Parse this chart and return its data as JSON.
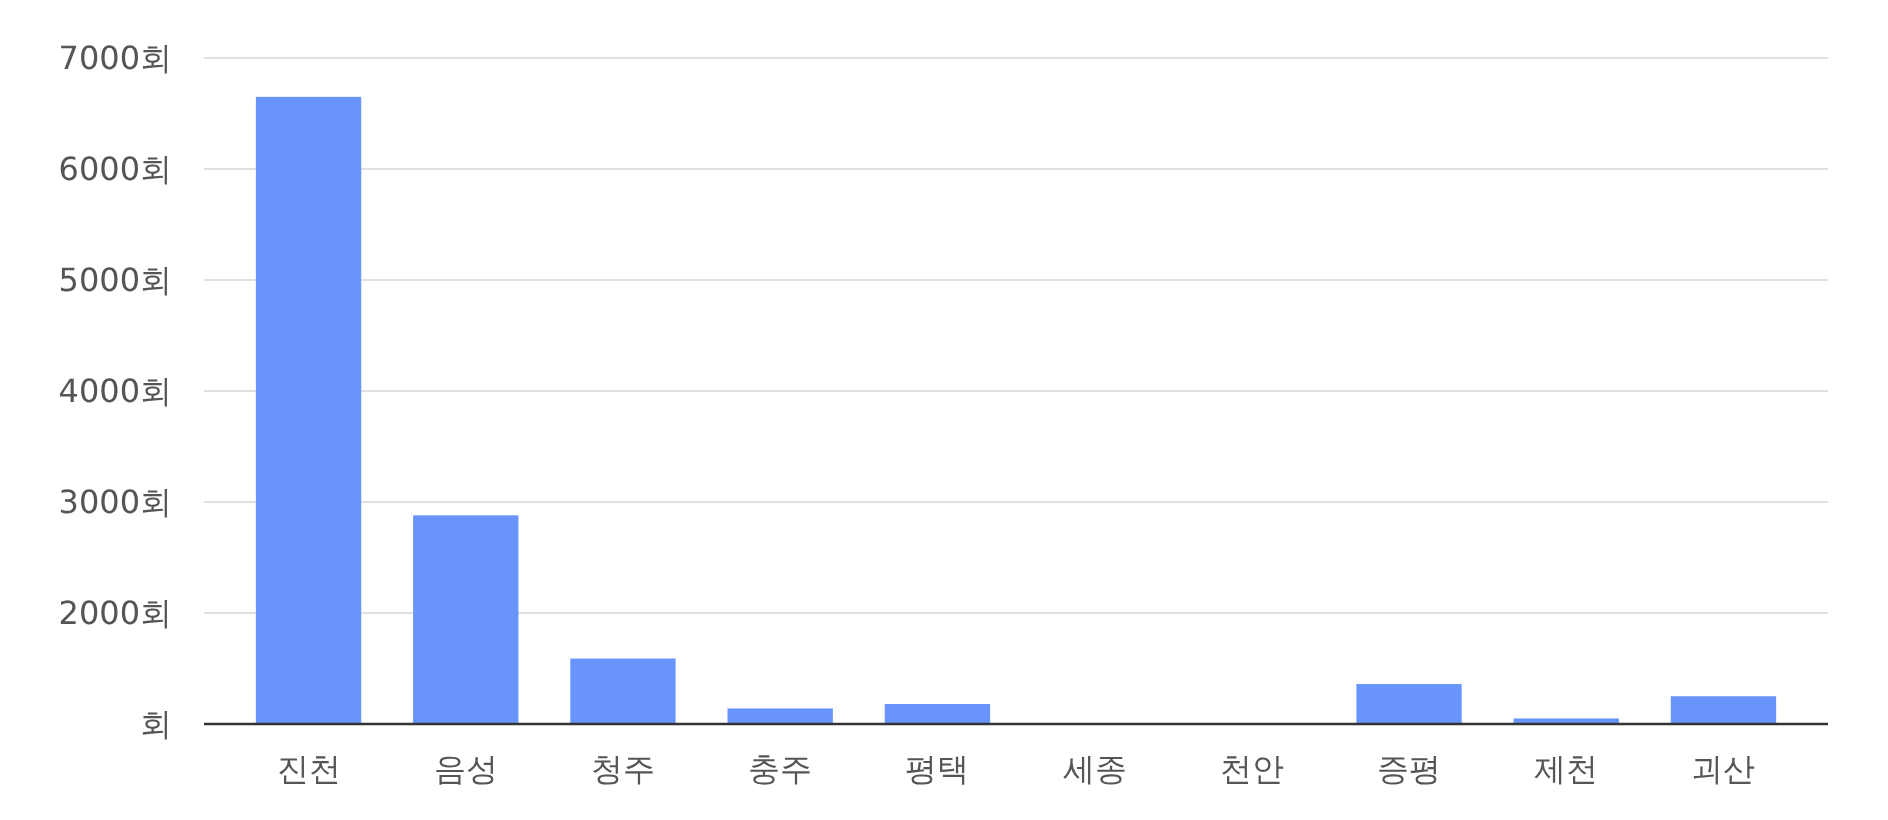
{
  "chart_data": {
    "type": "bar",
    "categories": [
      "진천",
      "음성",
      "청주",
      "충주",
      "평택",
      "세종",
      "천안",
      "증평",
      "제천",
      "괴산"
    ],
    "values": [
      6650,
      2880,
      1590,
      1140,
      1180,
      null,
      null,
      1360,
      1050,
      1250
    ],
    "color": "#6994fc",
    "ylim": [
      1000,
      7000
    ],
    "yticks": [
      {
        "value": 1000,
        "label": "회"
      },
      {
        "value": 2000,
        "label": "2000회"
      },
      {
        "value": 3000,
        "label": "3000회"
      },
      {
        "value": 4000,
        "label": "4000회"
      },
      {
        "value": 5000,
        "label": "5000회"
      },
      {
        "value": 6000,
        "label": "6000회"
      },
      {
        "value": 7000,
        "label": "7000회"
      }
    ],
    "grid": "y"
  }
}
